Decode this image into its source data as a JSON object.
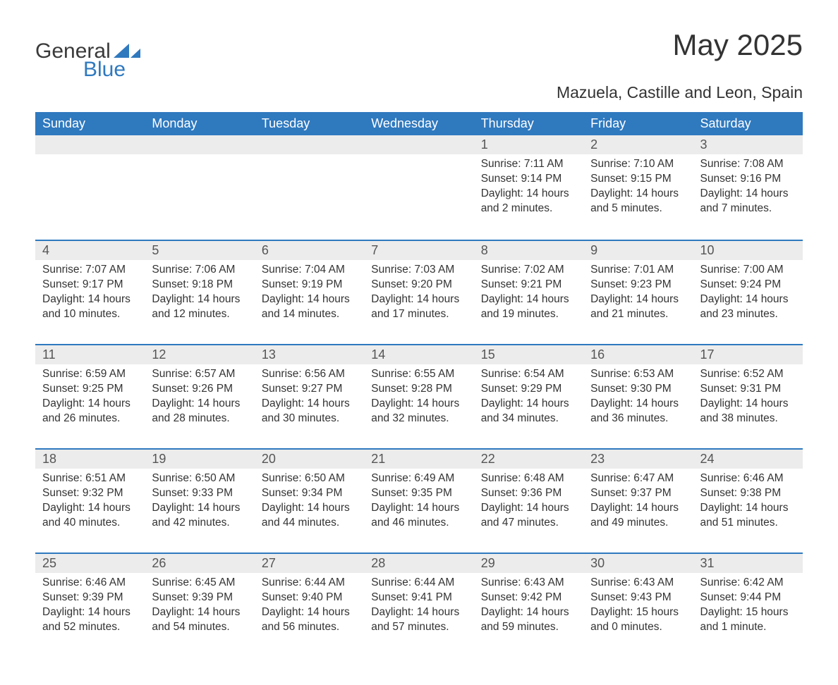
{
  "logo": {
    "word1": "General",
    "word2": "Blue",
    "triangle_color": "#2f79bf"
  },
  "title": "May 2025",
  "subtitle": "Mazuela, Castille and Leon, Spain",
  "colors": {
    "header_bg": "#2f79bf",
    "header_text": "#ffffff",
    "band_bg": "#ececec",
    "band_border": "#2f79bf",
    "body_text": "#333333",
    "page_bg": "#ffffff"
  },
  "typography": {
    "title_fontsize": 42,
    "subtitle_fontsize": 23,
    "header_fontsize": 18,
    "daynum_fontsize": 18,
    "body_fontsize": 15.5
  },
  "day_headers": [
    "Sunday",
    "Monday",
    "Tuesday",
    "Wednesday",
    "Thursday",
    "Friday",
    "Saturday"
  ],
  "labels": {
    "sunrise": "Sunrise",
    "sunset": "Sunset",
    "daylight": "Daylight"
  },
  "weeks": [
    [
      null,
      null,
      null,
      null,
      {
        "num": "1",
        "sunrise": "7:11 AM",
        "sunset": "9:14 PM",
        "daylight": "14 hours and 2 minutes."
      },
      {
        "num": "2",
        "sunrise": "7:10 AM",
        "sunset": "9:15 PM",
        "daylight": "14 hours and 5 minutes."
      },
      {
        "num": "3",
        "sunrise": "7:08 AM",
        "sunset": "9:16 PM",
        "daylight": "14 hours and 7 minutes."
      }
    ],
    [
      {
        "num": "4",
        "sunrise": "7:07 AM",
        "sunset": "9:17 PM",
        "daylight": "14 hours and 10 minutes."
      },
      {
        "num": "5",
        "sunrise": "7:06 AM",
        "sunset": "9:18 PM",
        "daylight": "14 hours and 12 minutes."
      },
      {
        "num": "6",
        "sunrise": "7:04 AM",
        "sunset": "9:19 PM",
        "daylight": "14 hours and 14 minutes."
      },
      {
        "num": "7",
        "sunrise": "7:03 AM",
        "sunset": "9:20 PM",
        "daylight": "14 hours and 17 minutes."
      },
      {
        "num": "8",
        "sunrise": "7:02 AM",
        "sunset": "9:21 PM",
        "daylight": "14 hours and 19 minutes."
      },
      {
        "num": "9",
        "sunrise": "7:01 AM",
        "sunset": "9:23 PM",
        "daylight": "14 hours and 21 minutes."
      },
      {
        "num": "10",
        "sunrise": "7:00 AM",
        "sunset": "9:24 PM",
        "daylight": "14 hours and 23 minutes."
      }
    ],
    [
      {
        "num": "11",
        "sunrise": "6:59 AM",
        "sunset": "9:25 PM",
        "daylight": "14 hours and 26 minutes."
      },
      {
        "num": "12",
        "sunrise": "6:57 AM",
        "sunset": "9:26 PM",
        "daylight": "14 hours and 28 minutes."
      },
      {
        "num": "13",
        "sunrise": "6:56 AM",
        "sunset": "9:27 PM",
        "daylight": "14 hours and 30 minutes."
      },
      {
        "num": "14",
        "sunrise": "6:55 AM",
        "sunset": "9:28 PM",
        "daylight": "14 hours and 32 minutes."
      },
      {
        "num": "15",
        "sunrise": "6:54 AM",
        "sunset": "9:29 PM",
        "daylight": "14 hours and 34 minutes."
      },
      {
        "num": "16",
        "sunrise": "6:53 AM",
        "sunset": "9:30 PM",
        "daylight": "14 hours and 36 minutes."
      },
      {
        "num": "17",
        "sunrise": "6:52 AM",
        "sunset": "9:31 PM",
        "daylight": "14 hours and 38 minutes."
      }
    ],
    [
      {
        "num": "18",
        "sunrise": "6:51 AM",
        "sunset": "9:32 PM",
        "daylight": "14 hours and 40 minutes."
      },
      {
        "num": "19",
        "sunrise": "6:50 AM",
        "sunset": "9:33 PM",
        "daylight": "14 hours and 42 minutes."
      },
      {
        "num": "20",
        "sunrise": "6:50 AM",
        "sunset": "9:34 PM",
        "daylight": "14 hours and 44 minutes."
      },
      {
        "num": "21",
        "sunrise": "6:49 AM",
        "sunset": "9:35 PM",
        "daylight": "14 hours and 46 minutes."
      },
      {
        "num": "22",
        "sunrise": "6:48 AM",
        "sunset": "9:36 PM",
        "daylight": "14 hours and 47 minutes."
      },
      {
        "num": "23",
        "sunrise": "6:47 AM",
        "sunset": "9:37 PM",
        "daylight": "14 hours and 49 minutes."
      },
      {
        "num": "24",
        "sunrise": "6:46 AM",
        "sunset": "9:38 PM",
        "daylight": "14 hours and 51 minutes."
      }
    ],
    [
      {
        "num": "25",
        "sunrise": "6:46 AM",
        "sunset": "9:39 PM",
        "daylight": "14 hours and 52 minutes."
      },
      {
        "num": "26",
        "sunrise": "6:45 AM",
        "sunset": "9:39 PM",
        "daylight": "14 hours and 54 minutes."
      },
      {
        "num": "27",
        "sunrise": "6:44 AM",
        "sunset": "9:40 PM",
        "daylight": "14 hours and 56 minutes."
      },
      {
        "num": "28",
        "sunrise": "6:44 AM",
        "sunset": "9:41 PM",
        "daylight": "14 hours and 57 minutes."
      },
      {
        "num": "29",
        "sunrise": "6:43 AM",
        "sunset": "9:42 PM",
        "daylight": "14 hours and 59 minutes."
      },
      {
        "num": "30",
        "sunrise": "6:43 AM",
        "sunset": "9:43 PM",
        "daylight": "15 hours and 0 minutes."
      },
      {
        "num": "31",
        "sunrise": "6:42 AM",
        "sunset": "9:44 PM",
        "daylight": "15 hours and 1 minute."
      }
    ]
  ]
}
